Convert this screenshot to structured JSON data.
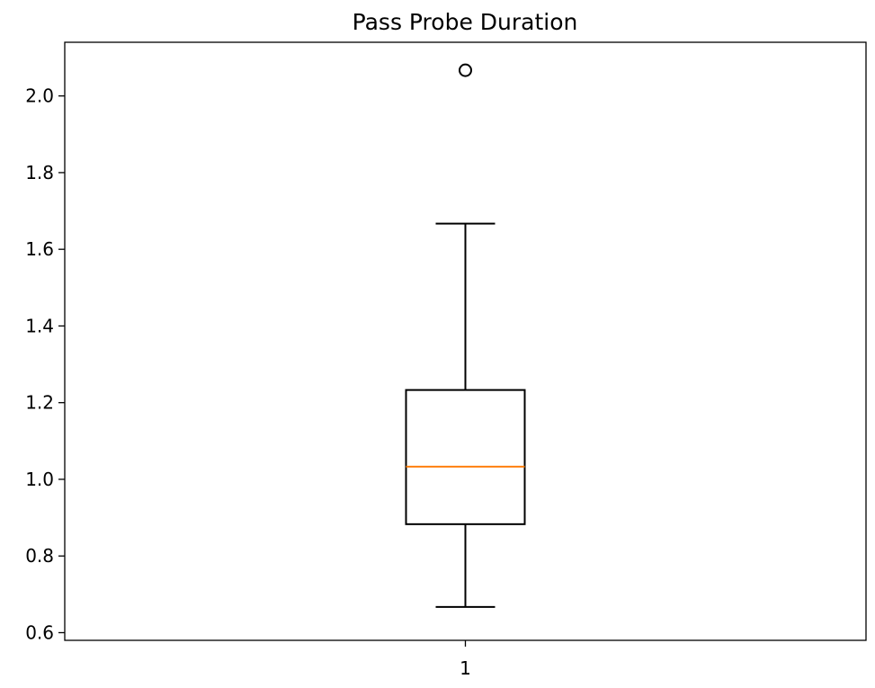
{
  "chart_data": {
    "type": "box",
    "title": "Pass Probe Duration",
    "xlabel": "",
    "ylabel": "",
    "categories": [
      "1"
    ],
    "ylim": [
      0.58,
      2.14
    ],
    "yticks": [
      0.6,
      0.8,
      1.0,
      1.2,
      1.4,
      1.6,
      1.8,
      2.0
    ],
    "ytick_labels": [
      "0.6",
      "0.8",
      "1.0",
      "1.2",
      "1.4",
      "1.6",
      "1.8",
      "2.0"
    ],
    "boxes": [
      {
        "category": "1",
        "whisker_low": 0.667,
        "q1": 0.883,
        "median": 1.033,
        "q3": 1.233,
        "whisker_high": 1.667,
        "outliers": [
          2.067
        ]
      }
    ],
    "grid": false,
    "colors": {
      "box": "#000000",
      "median": "#ff7f0e",
      "axes": "#000000"
    }
  }
}
